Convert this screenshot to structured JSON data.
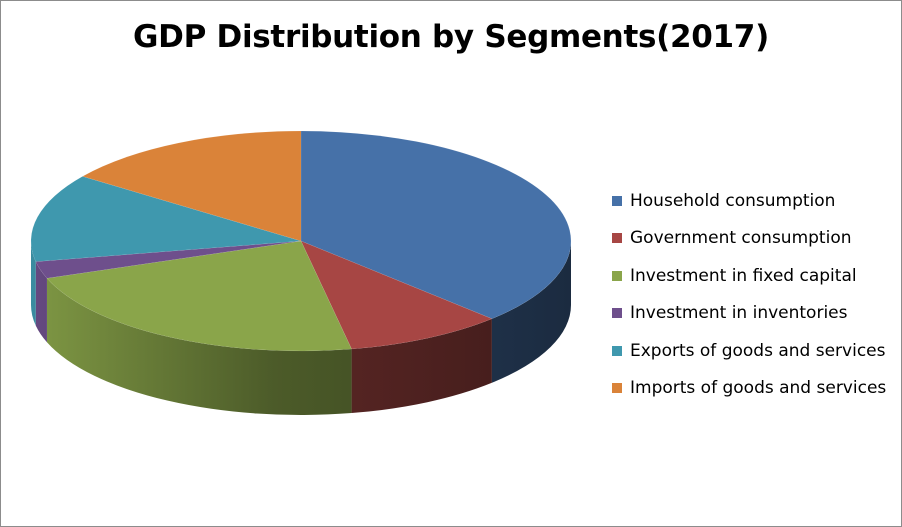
{
  "chart_data": {
    "type": "pie",
    "title": "GDP Distribution by Segments(2017)",
    "categories": [
      "Household consumption",
      "Government consumption",
      "Investment in fixed capital",
      "Investment in inventories",
      "Exports of goods and services",
      "Imports of goods and services"
    ],
    "values": [
      37.5,
      9.5,
      22.5,
      2.5,
      13.0,
      15.0
    ],
    "colors": [
      "#4671A8",
      "#A74644",
      "#8AA54A",
      "#6E4F8C",
      "#3F98AE",
      "#DA8339"
    ],
    "legend_position": "right",
    "style": "3d"
  }
}
